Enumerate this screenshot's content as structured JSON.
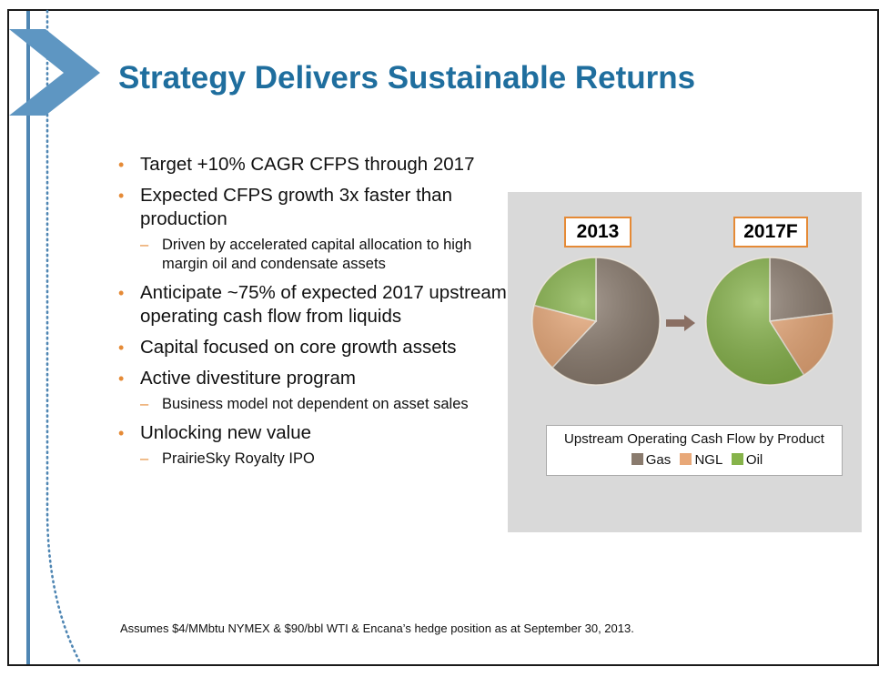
{
  "title": "Strategy Delivers Sustainable Returns",
  "bullets": [
    {
      "level": 1,
      "text": "Target +10% CAGR CFPS through 2017"
    },
    {
      "level": 1,
      "text": "Expected CFPS growth 3x faster than production"
    },
    {
      "level": 2,
      "text": "Driven by accelerated capital allocation to high margin oil and condensate assets"
    },
    {
      "level": 1,
      "text": "Anticipate ~75% of expected 2017 upstream operating cash flow from liquids"
    },
    {
      "level": 1,
      "text": "Capital focused on core growth assets"
    },
    {
      "level": 1,
      "text": "Active divestiture program"
    },
    {
      "level": 2,
      "text": "Business model not dependent on asset sales"
    },
    {
      "level": 1,
      "text": "Unlocking new value"
    },
    {
      "level": 2,
      "text": "PrairieSky Royalty IPO"
    }
  ],
  "chart_data": {
    "type": "pie",
    "title": "Upstream Operating Cash Flow by Product",
    "legend": [
      "Gas",
      "NGL",
      "Oil"
    ],
    "colors": {
      "Gas": "#8a7b6e",
      "NGL": "#e8a878",
      "Oil": "#86b34a"
    },
    "pies": [
      {
        "label": "2013",
        "values": [
          {
            "name": "Gas",
            "value": 62
          },
          {
            "name": "NGL",
            "value": 17
          },
          {
            "name": "Oil",
            "value": 21
          }
        ]
      },
      {
        "label": "2017F",
        "values": [
          {
            "name": "Gas",
            "value": 23
          },
          {
            "name": "NGL",
            "value": 18
          },
          {
            "name": "Oil",
            "value": 59
          }
        ]
      }
    ]
  },
  "footnote": "Assumes $4/MMbtu  NYMEX & $90/bbl WTI & Encana’s hedge position as at September 30, 2013."
}
